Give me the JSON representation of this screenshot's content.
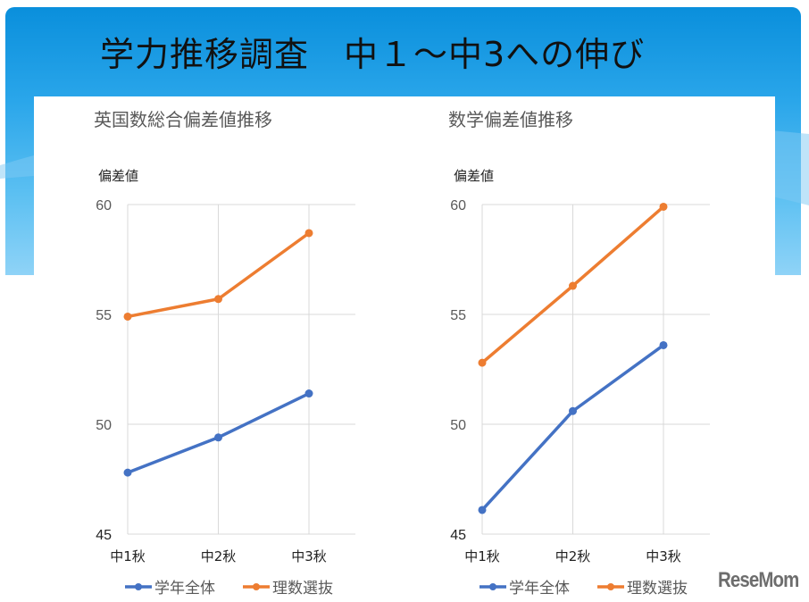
{
  "slide": {
    "title": "学力推移調査　中１～中3への伸び",
    "logo": "ReseMom"
  },
  "colors": {
    "blue": "#4472c4",
    "orange": "#ed7d31",
    "grid": "#d9d9d9"
  },
  "chart_data": [
    {
      "type": "line",
      "title": "英国数総合偏差値推移",
      "ylabel": "偏差値",
      "xlabel": "",
      "categories": [
        "中1秋",
        "中2秋",
        "中3秋"
      ],
      "ylim": [
        45,
        60
      ],
      "yticks": [
        "45",
        "50",
        "55",
        "60"
      ],
      "grid": true,
      "legend": "bottom",
      "series": [
        {
          "name": "学年全体",
          "color": "#4472c4",
          "values": [
            47.8,
            49.4,
            51.4
          ]
        },
        {
          "name": "理数選抜",
          "color": "#ed7d31",
          "values": [
            54.9,
            55.7,
            58.7
          ]
        }
      ]
    },
    {
      "type": "line",
      "title": "数学偏差値推移",
      "ylabel": "偏差値",
      "xlabel": "",
      "categories": [
        "中1秋",
        "中2秋",
        "中3秋"
      ],
      "ylim": [
        45,
        60
      ],
      "yticks": [
        "45",
        "50",
        "55",
        "60"
      ],
      "grid": true,
      "legend": "bottom",
      "series": [
        {
          "name": "学年全体",
          "color": "#4472c4",
          "values": [
            46.1,
            50.6,
            53.6
          ]
        },
        {
          "name": "理数選抜",
          "color": "#ed7d31",
          "values": [
            52.8,
            56.3,
            59.9
          ]
        }
      ]
    }
  ]
}
